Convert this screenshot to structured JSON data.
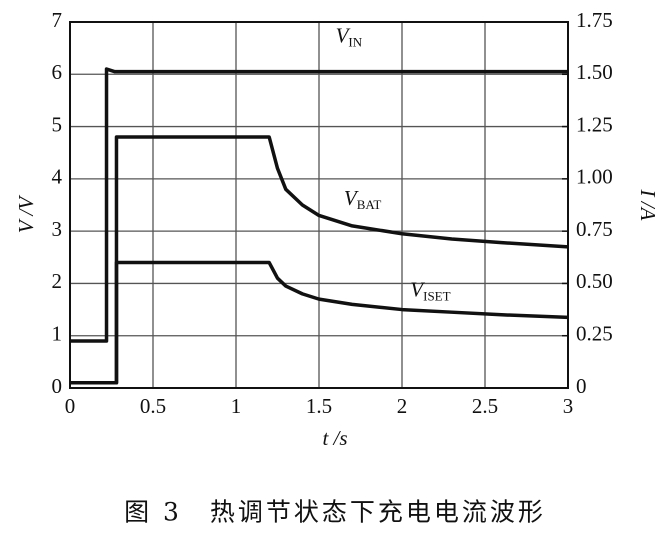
{
  "chart_data": {
    "type": "line",
    "caption": "图 3　热调节状态下充电电流波形",
    "x_label": "t /s",
    "y_label": "V /V",
    "y2_label": "I /A",
    "x": [
      0,
      0.22,
      0.22,
      0.27,
      0.28,
      0.28,
      0.5,
      1.0,
      1.2,
      1.25,
      1.3,
      1.4,
      1.5,
      1.7,
      2.0,
      2.3,
      2.6,
      3.0
    ],
    "series": [
      {
        "name": "VIN",
        "color": "#111111",
        "values": [
          0.9,
          0.9,
          6.1,
          6.05,
          6.05,
          6.05,
          6.05,
          6.05,
          6.05,
          6.05,
          6.05,
          6.05,
          6.05,
          6.05,
          6.05,
          6.05,
          6.05,
          6.05
        ]
      },
      {
        "name": "VBAT",
        "color": "#111111",
        "values": [
          0.1,
          0.1,
          0.1,
          0.1,
          0.1,
          4.8,
          4.8,
          4.8,
          4.8,
          4.2,
          3.8,
          3.5,
          3.3,
          3.1,
          2.95,
          2.85,
          2.78,
          2.7
        ]
      },
      {
        "name": "VISET",
        "color": "#111111",
        "values": [
          0.1,
          0.1,
          0.1,
          0.1,
          0.1,
          2.4,
          2.4,
          2.4,
          2.4,
          2.1,
          1.95,
          1.8,
          1.7,
          1.6,
          1.5,
          1.45,
          1.4,
          1.35
        ]
      }
    ],
    "xlim": [
      0,
      3
    ],
    "xticks": [
      0,
      0.5,
      1,
      1.5,
      2,
      2.5,
      3
    ],
    "ylim": [
      0,
      7
    ],
    "yticks": [
      0,
      1,
      2,
      3,
      4,
      5,
      6,
      7
    ],
    "y2lim": [
      0,
      1.75
    ],
    "y2ticks": [
      0,
      {
        "value": 0.25,
        "label": "0.25"
      },
      {
        "value": 0.5,
        "label": "0.50"
      },
      {
        "value": 0.75,
        "label": "0.75"
      },
      {
        "value": 1,
        "label": "1.00"
      },
      {
        "value": 1.25,
        "label": "1.25"
      },
      {
        "value": 1.5,
        "label": "1.50"
      },
      1.75
    ],
    "grid": true
  }
}
